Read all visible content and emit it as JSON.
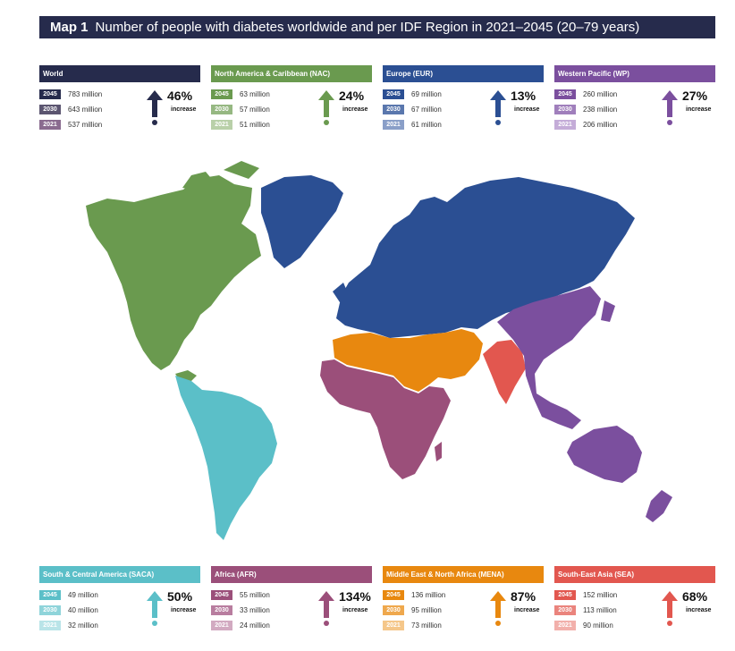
{
  "title": {
    "label": "Map 1",
    "text": "Number of people with diabetes worldwide and per IDF Region in 2021–2045 (20–79 years)"
  },
  "regions_top": [
    {
      "name": "World",
      "rows": [
        {
          "year": "2045",
          "value": "783 million"
        },
        {
          "year": "2030",
          "value": "643 million"
        },
        {
          "year": "2021",
          "value": "537 million"
        }
      ],
      "increase_pct": "46%",
      "increase_label": "increase",
      "colors": {
        "head": "#262b4c",
        "y2045": "#262b4c",
        "y2030": "#5b5570",
        "y2021": "#8a6b8f",
        "arrow": "#262b4c"
      }
    },
    {
      "name": "North America & Caribbean (NAC)",
      "rows": [
        {
          "year": "2045",
          "value": "63 million"
        },
        {
          "year": "2030",
          "value": "57 million"
        },
        {
          "year": "2021",
          "value": "51 million"
        }
      ],
      "increase_pct": "24%",
      "increase_label": "increase",
      "colors": {
        "head": "#6a9a4f",
        "y2045": "#6a9a4f",
        "y2030": "#96b882",
        "y2021": "#b9d0a9",
        "arrow": "#6a9a4f"
      }
    },
    {
      "name": "Europe (EUR)",
      "rows": [
        {
          "year": "2045",
          "value": "69 million"
        },
        {
          "year": "2030",
          "value": "67 million"
        },
        {
          "year": "2021",
          "value": "61 million"
        }
      ],
      "increase_pct": "13%",
      "increase_label": "increase",
      "colors": {
        "head": "#2b4f93",
        "y2045": "#2b4f93",
        "y2030": "#5a77ad",
        "y2021": "#8a9fc8",
        "arrow": "#2b4f93"
      }
    },
    {
      "name": "Western Pacific (WP)",
      "rows": [
        {
          "year": "2045",
          "value": "260 million"
        },
        {
          "year": "2030",
          "value": "238 million"
        },
        {
          "year": "2021",
          "value": "206 million"
        }
      ],
      "increase_pct": "27%",
      "increase_label": "increase",
      "colors": {
        "head": "#7b4f9e",
        "y2045": "#7b4f9e",
        "y2030": "#a07fbc",
        "y2021": "#c4acd8",
        "arrow": "#7b4f9e"
      }
    }
  ],
  "regions_bottom": [
    {
      "name": "South & Central America (SACA)",
      "rows": [
        {
          "year": "2045",
          "value": "49 million"
        },
        {
          "year": "2030",
          "value": "40 million"
        },
        {
          "year": "2021",
          "value": "32 million"
        }
      ],
      "increase_pct": "50%",
      "increase_label": "increase",
      "colors": {
        "head": "#5bbfc8",
        "y2045": "#5bbfc8",
        "y2030": "#8fd4da",
        "y2021": "#b9e4e8",
        "arrow": "#5bbfc8"
      }
    },
    {
      "name": "Africa (AFR)",
      "rows": [
        {
          "year": "2045",
          "value": "55 million"
        },
        {
          "year": "2030",
          "value": "33 million"
        },
        {
          "year": "2021",
          "value": "24 million"
        }
      ],
      "increase_pct": "134%",
      "increase_label": "increase",
      "colors": {
        "head": "#9b4f7a",
        "y2045": "#9b4f7a",
        "y2030": "#b87d9f",
        "y2021": "#d2aac1",
        "arrow": "#9b4f7a"
      }
    },
    {
      "name": "Middle East & North Africa (MENA)",
      "rows": [
        {
          "year": "2045",
          "value": "136 million"
        },
        {
          "year": "2030",
          "value": "95 million"
        },
        {
          "year": "2021",
          "value": "73 million"
        }
      ],
      "increase_pct": "87%",
      "increase_label": "increase",
      "colors": {
        "head": "#e8880f",
        "y2045": "#e8880f",
        "y2030": "#efa84d",
        "y2021": "#f5c78a",
        "arrow": "#e8880f"
      }
    },
    {
      "name": "South-East Asia (SEA)",
      "rows": [
        {
          "year": "2045",
          "value": "152 million"
        },
        {
          "year": "2030",
          "value": "113 million"
        },
        {
          "year": "2021",
          "value": "90 million"
        }
      ],
      "increase_pct": "68%",
      "increase_label": "increase",
      "colors": {
        "head": "#e2574f",
        "y2045": "#e2574f",
        "y2030": "#ea847d",
        "y2021": "#f2b0ab",
        "arrow": "#e2574f"
      }
    }
  ],
  "map_colors": {
    "nac": "#6a9a4f",
    "saca": "#5bbfc8",
    "eur": "#2b4f93",
    "afr": "#9b4f7a",
    "mena": "#e8880f",
    "sea": "#e2574f",
    "wp": "#7b4f9e",
    "neutral": "#b0b0b0"
  }
}
